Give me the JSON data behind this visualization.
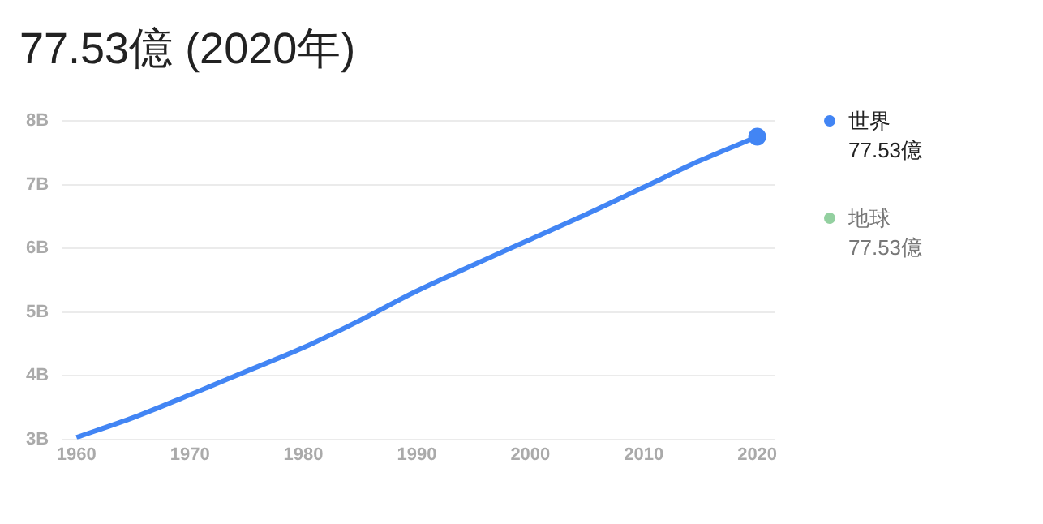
{
  "chart_data": {
    "type": "line",
    "title": "77.53億 (2020年)",
    "x": [
      1960,
      1965,
      1970,
      1975,
      1980,
      1985,
      1990,
      1995,
      2000,
      2005,
      2010,
      2015,
      2020
    ],
    "series": [
      {
        "name": "世界",
        "color": "#4285f4",
        "values": [
          3.03,
          3.34,
          3.7,
          4.07,
          4.44,
          4.87,
          5.33,
          5.74,
          6.14,
          6.54,
          6.96,
          7.38,
          7.753
        ]
      },
      {
        "name": "地球",
        "color": "#93d0a0",
        "values": [
          null,
          null,
          null,
          null,
          null,
          null,
          null,
          null,
          null,
          null,
          null,
          null,
          null
        ]
      },
      {
        "type": "scatter",
        "color": "#4285f4",
        "x": [
          2020
        ],
        "values": [
          7.753
        ]
      }
    ],
    "xlim": [
      1958.7,
      2021.6
    ],
    "xticks": [
      1960,
      1970,
      1980,
      1990,
      2000,
      2010,
      2020
    ],
    "ylim": [
      3,
      8
    ],
    "yticks": [
      {
        "value": 3,
        "label": "3B"
      },
      {
        "value": 4,
        "label": "4B"
      },
      {
        "value": 5,
        "label": "5B"
      },
      {
        "value": 6,
        "label": "6B"
      },
      {
        "value": 7,
        "label": "7B"
      },
      {
        "value": 8,
        "label": "8B"
      }
    ],
    "grid": "y",
    "legend": "top right",
    "line_style": "solid",
    "annotations": [
      "77.53億",
      "77.53億"
    ]
  }
}
